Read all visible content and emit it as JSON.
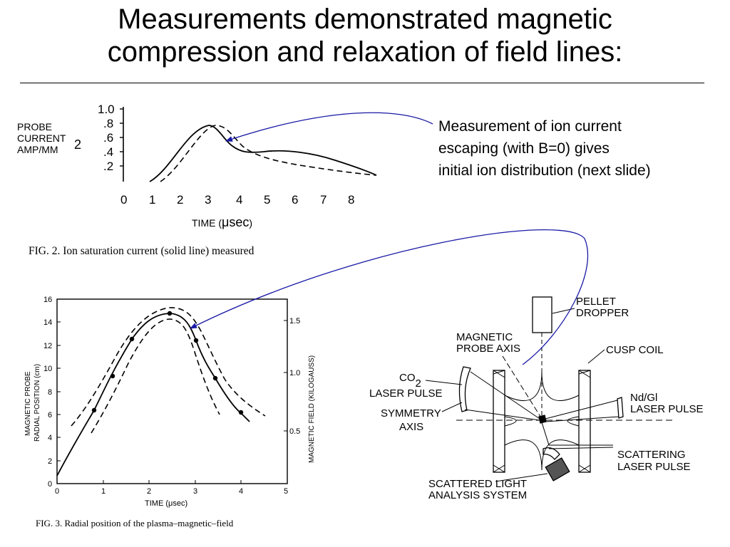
{
  "title": {
    "line1": "Measurements demonstrated magnetic",
    "line2": "compression and relaxation of field lines:"
  },
  "annotation": {
    "line1": "Measurement of ion current",
    "line2": "escaping (with B=0) gives",
    "line3": "initial ion distribution (next slide)"
  },
  "figure2": {
    "caption": "FIG. 2.  Ion saturation current (solid line)  measured",
    "ylabel_lines": [
      "PROBE",
      "CURRENT",
      "AMP/MM"
    ],
    "ylabel_sup": "2",
    "xlabel_prefix": "TIME (",
    "xlabel_unit": "μsec",
    "xlabel_suffix": ")",
    "ytick_labels": [
      "1.0",
      ".8",
      ".6",
      ".4",
      ".2"
    ],
    "xtick_labels": [
      "0",
      "1",
      "2",
      "3",
      "4",
      "5",
      "6",
      "7",
      "8"
    ]
  },
  "figure3": {
    "caption": "FIG. 3.  Radial position of the plasma–magnetic–field",
    "ylabel_left_1": "MAGNETIC PROBE",
    "ylabel_left_2": "RADIAL POSITION (cm)",
    "ylabel_right": "MAGNETIC FIELD (KILOGAUSS)",
    "xlabel": "TIME (μsec)",
    "ytick_labels": [
      "0",
      "2",
      "4",
      "6",
      "8",
      "10",
      "12",
      "14",
      "16"
    ],
    "xtick_labels": [
      "0",
      "1",
      "2",
      "3",
      "4",
      "5"
    ],
    "right_tick_labels": [
      "0.5",
      "1.0",
      "1.5"
    ]
  },
  "schematic": {
    "pellet_1": "PELLET",
    "pellet_2": "DROPPER",
    "probe_axis_1": "MAGNETIC",
    "probe_axis_2": "PROBE AXIS",
    "cusp_coil": "CUSP COIL",
    "co2": "CO",
    "co2_sub": "2",
    "laser_pulse": "LASER PULSE",
    "symmetry_1": "SYMMETRY",
    "symmetry_2": "AXIS",
    "ndgl": "Nd/Gl",
    "ndgl_laser": "LASER PULSE",
    "scattering_1": "SCATTERING",
    "scattering_2": "LASER PULSE",
    "scattered_1": "SCATTERED LIGHT",
    "scattered_2": "ANALYSIS SYSTEM"
  },
  "colors": {
    "arrow": "#1a1aa6",
    "ink": "#000000"
  }
}
